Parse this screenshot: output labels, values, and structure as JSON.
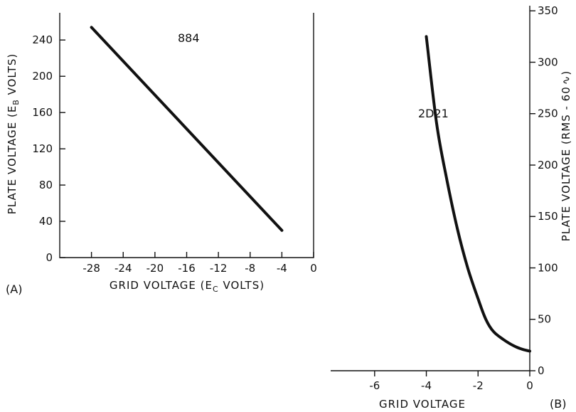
{
  "chart_data": [
    {
      "type": "line",
      "panel_label": "(A)",
      "annotation": "884",
      "xlabel": "GRID VOLTAGE (E",
      "xlabel_sub": "C",
      "xlabel_end": " VOLTS)",
      "ylabel": "PLATE VOLTAGE (E",
      "ylabel_sub": "B",
      "ylabel_end": " VOLTS)",
      "xlim": [
        -32,
        0
      ],
      "ylim": [
        0,
        270
      ],
      "x_ticks": [
        "-28",
        "-24",
        "-20",
        "-16",
        "-12",
        "-8",
        "-4",
        "0"
      ],
      "y_ticks": [
        "0",
        "40",
        "80",
        "120",
        "160",
        "200",
        "240"
      ],
      "series": [
        {
          "x": [
            -28,
            -4
          ],
          "y": [
            254,
            30
          ]
        }
      ]
    },
    {
      "type": "line",
      "panel_label": "(B)",
      "annotation": "2D21",
      "xlabel": "GRID VOLTAGE",
      "ylabel": "PLATE VOLTAGE (RMS - 60",
      "ylabel_end": ")",
      "xlim": [
        -7.7,
        0
      ],
      "ylim": [
        0,
        355
      ],
      "x_ticks": [
        "-6",
        "-4",
        "-2",
        "0"
      ],
      "y_ticks": [
        "0",
        "50",
        "100",
        "150",
        "200",
        "250",
        "300",
        "350"
      ],
      "series": [
        {
          "x": [
            -4.0,
            -3.6,
            -3.2,
            -2.8,
            -2.4,
            -2.0,
            -1.7,
            -1.4,
            -1.0,
            -0.6,
            -0.3,
            0
          ],
          "y": [
            325,
            240,
            185,
            138,
            100,
            70,
            50,
            38,
            30,
            24,
            21,
            19
          ]
        }
      ]
    }
  ]
}
